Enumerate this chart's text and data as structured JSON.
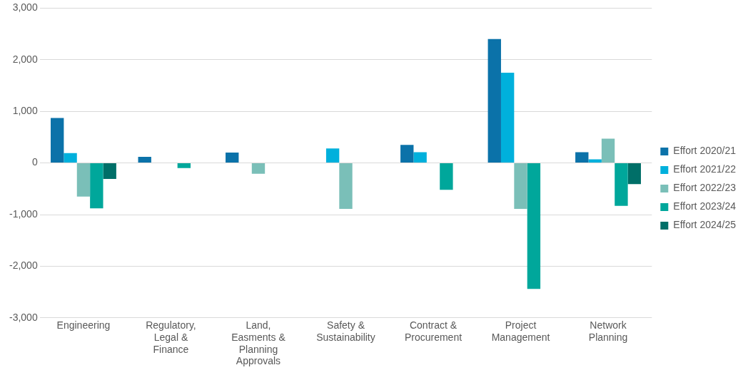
{
  "chart_data": {
    "type": "bar",
    "categories": [
      "Engineering",
      "Regulatory, Legal & Finance",
      "Land, Easments & Planning Approvals",
      "Safety & Sustainability",
      "Contract & Procurement",
      "Project Management",
      "Network Planning"
    ],
    "series": [
      {
        "name": "Effort 2020/21",
        "color": "#0b72a9",
        "values": [
          870,
          120,
          200,
          null,
          350,
          2400,
          210
        ]
      },
      {
        "name": "Effort 2021/22",
        "color": "#00b0dc",
        "values": [
          190,
          null,
          null,
          280,
          210,
          1750,
          70
        ]
      },
      {
        "name": "Effort 2022/23",
        "color": "#7abfb8",
        "values": [
          -650,
          null,
          -210,
          -890,
          null,
          -890,
          470
        ]
      },
      {
        "name": "Effort 2023/24",
        "color": "#00a79b",
        "values": [
          -880,
          -100,
          null,
          null,
          -520,
          -2440,
          -830
        ]
      },
      {
        "name": "Effort 2024/25",
        "color": "#006f68",
        "values": [
          -310,
          null,
          null,
          null,
          null,
          null,
          -410
        ]
      }
    ],
    "ylim": [
      -3000,
      3000
    ],
    "yticks": [
      {
        "value": -3000,
        "label": "-3,000"
      },
      {
        "value": -2000,
        "label": "-2,000"
      },
      {
        "value": -1000,
        "label": "-1,000"
      },
      0,
      {
        "value": 1000,
        "label": "1,000"
      },
      {
        "value": 2000,
        "label": "2,000"
      },
      {
        "value": 3000,
        "label": "3,000"
      }
    ],
    "grid": "y",
    "legend": "right"
  }
}
